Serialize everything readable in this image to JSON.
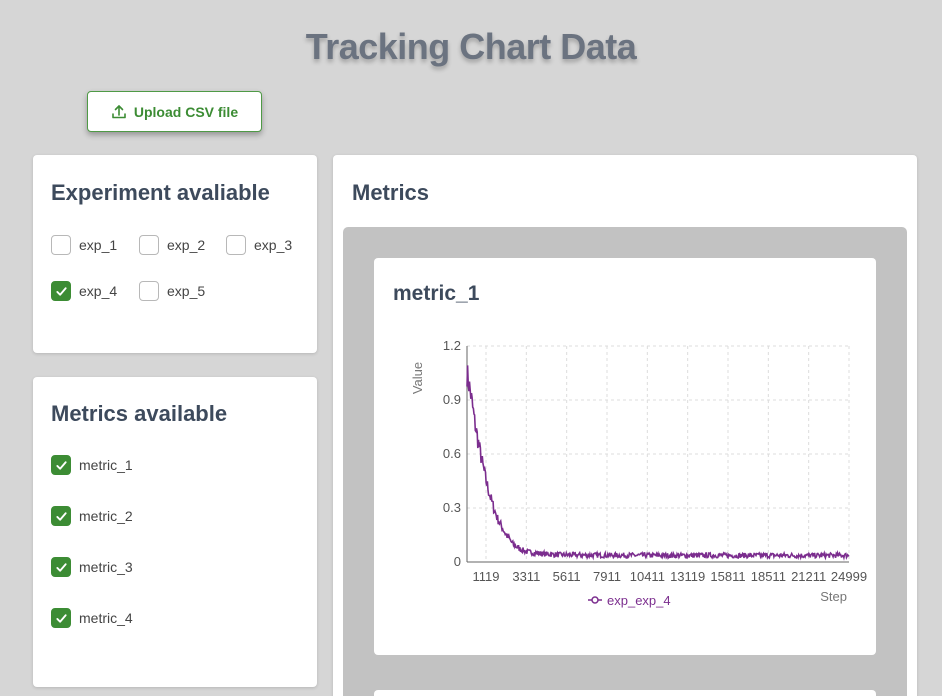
{
  "page": {
    "title": "Tracking Chart Data"
  },
  "upload": {
    "label": "Upload CSV file",
    "icon": "upload-icon"
  },
  "experiments": {
    "title": "Experiment avaliable",
    "items": [
      {
        "label": "exp_1",
        "checked": false
      },
      {
        "label": "exp_2",
        "checked": false
      },
      {
        "label": "exp_3",
        "checked": false
      },
      {
        "label": "exp_4",
        "checked": true
      },
      {
        "label": "exp_5",
        "checked": false
      }
    ]
  },
  "metrics_available": {
    "title": "Metrics available",
    "items": [
      {
        "label": "metric_1",
        "checked": true
      },
      {
        "label": "metric_2",
        "checked": true
      },
      {
        "label": "metric_3",
        "checked": true
      },
      {
        "label": "metric_4",
        "checked": true
      }
    ]
  },
  "metrics": {
    "title": "Metrics"
  },
  "colors": {
    "accent": "#3c8c34",
    "series": "#7b2d8e"
  },
  "chart_data": {
    "type": "line",
    "title": "metric_1",
    "xlabel": "Step",
    "ylabel": "Value",
    "x_ticks": [
      "1119",
      "3311",
      "5611",
      "7911",
      "10411",
      "13119",
      "15811",
      "18511",
      "21211",
      "24999"
    ],
    "y_ticks": [
      "0",
      "0.3",
      "0.6",
      "0.9",
      "1.2"
    ],
    "ylim": [
      0,
      1.2
    ],
    "xlim": [
      0,
      24999
    ],
    "grid": true,
    "legend_position": "bottom",
    "series": [
      {
        "name": "exp_exp_4",
        "x": [
          0,
          250,
          500,
          750,
          1000,
          1250,
          1500,
          1750,
          2000,
          2500,
          3000,
          3500,
          4000,
          5000,
          6000,
          8000,
          10000,
          12000,
          14000,
          16000,
          18000,
          20000,
          22000,
          24999
        ],
        "values": [
          1.05,
          0.93,
          0.78,
          0.66,
          0.55,
          0.45,
          0.37,
          0.3,
          0.24,
          0.16,
          0.1,
          0.07,
          0.055,
          0.045,
          0.04,
          0.038,
          0.037,
          0.037,
          0.036,
          0.037,
          0.036,
          0.037,
          0.036,
          0.037
        ]
      }
    ]
  }
}
